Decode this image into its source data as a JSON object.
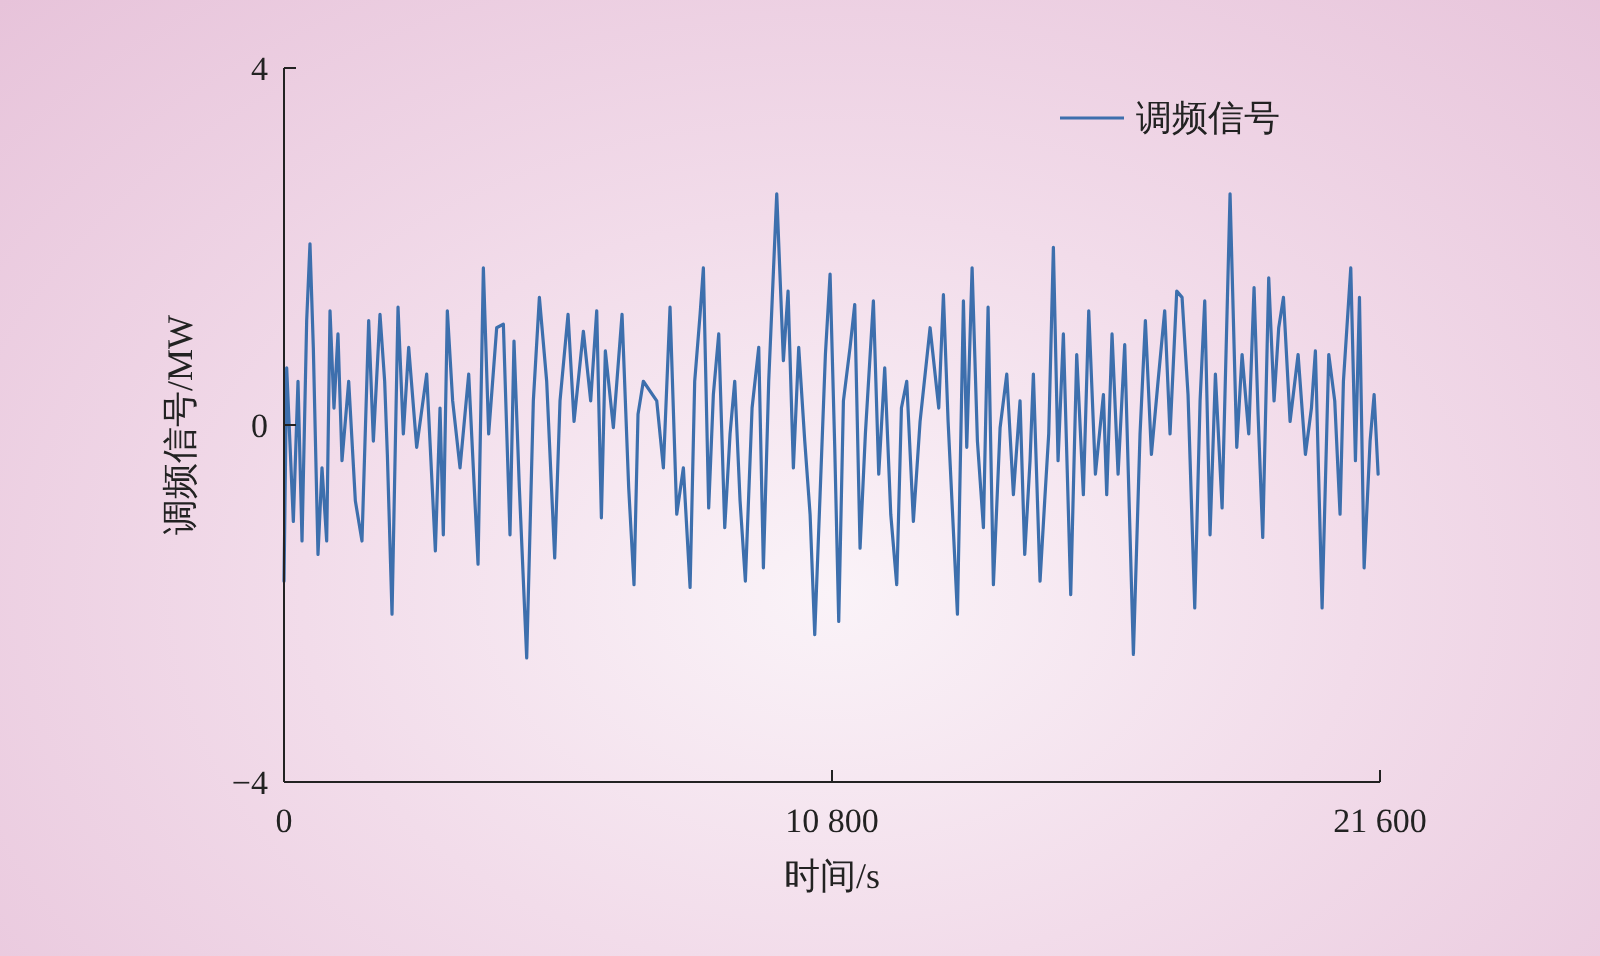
{
  "chart_data": {
    "type": "line",
    "xlabel": "时间/s",
    "ylabel": "调频信号/MW",
    "xlim": [
      0,
      21600
    ],
    "xticks": [
      0,
      {
        "value": 10800,
        "label": "10 800"
      },
      {
        "value": 21600,
        "label": "21 600"
      }
    ],
    "ylim": [
      -4,
      4
    ],
    "yticks": [
      {
        "value": -4,
        "label": "−4"
      },
      0,
      4
    ],
    "grid": false,
    "legend": "top right",
    "x": [
      0,
      53,
      184,
      276,
      355,
      447,
      512,
      578,
      670,
      749,
      841,
      907,
      985,
      1064,
      1143,
      1275,
      1406,
      1537,
      1669,
      1761,
      1892,
      1984,
      2037,
      2129,
      2247,
      2352,
      2457,
      2615,
      2812,
      2983,
      3075,
      3140,
      3219,
      3324,
      3469,
      3640,
      3824,
      3929,
      4034,
      4192,
      4323,
      4454,
      4533,
      4638,
      4783,
      4914,
      5033,
      5177,
      5335,
      5440,
      5598,
      5716,
      5900,
      6044,
      6163,
      6255,
      6333,
      6491,
      6662,
      6793,
      6898,
      6977,
      7082,
      7346,
      7477,
      7608,
      7740,
      7871,
      8003,
      8094,
      8200,
      8265,
      8370,
      8462,
      8568,
      8686,
      8791,
      8883,
      8988,
      9093,
      9225,
      9356,
      9448,
      9553,
      9711,
      9842,
      9934,
      10039,
      10144,
      10263,
      10368,
      10460,
      10565,
      10670,
      10762,
      10854,
      10933,
      11025,
      11156,
      11248,
      11353,
      11458,
      11616,
      11721,
      11839,
      11958,
      12076,
      12168,
      12273,
      12404,
      12536,
      12733,
      12904,
      12996,
      13088,
      13272,
      13390,
      13456,
      13561,
      13666,
      13784,
      13876,
      13981,
      14113,
      14244,
      14375,
      14506,
      14598,
      14703,
      14769,
      14900,
      14992,
      15071,
      15163,
      15255,
      15360,
      15505,
      15623,
      15754,
      15860,
      15991,
      16149,
      16214,
      16319,
      16438,
      16569,
      16740,
      16871,
      16976,
      17095,
      17226,
      17357,
      17462,
      17594,
      17699,
      17817,
      17949,
      18054,
      18146,
      18251,
      18356,
      18488,
      18645,
      18777,
      18882,
      19013,
      19118,
      19197,
      19289,
      19407,
      19512,
      19604,
      19697,
      19828,
      19986,
      20130,
      20249,
      20327,
      20459,
      20590,
      20708,
      20813,
      20879,
      21024,
      21116,
      21195,
      21287,
      21405,
      21484,
      21563
    ],
    "series": [
      {
        "name": "调频信号",
        "color": "#3d6fad",
        "values": [
          -1.75,
          0.64,
          -1.08,
          0.49,
          -1.3,
          1.17,
          2.03,
          0.87,
          -1.45,
          -0.48,
          -1.3,
          1.28,
          0.19,
          1.02,
          -0.4,
          0.49,
          -0.85,
          -1.3,
          1.17,
          -0.18,
          1.24,
          0.49,
          -0.33,
          -2.12,
          1.32,
          -0.1,
          0.87,
          -0.25,
          0.57,
          -1.41,
          0.19,
          -1.23,
          1.28,
          0.27,
          -0.48,
          0.57,
          -1.56,
          1.76,
          -0.1,
          1.09,
          1.13,
          -1.23,
          0.94,
          -0.7,
          -2.61,
          0.27,
          1.43,
          0.49,
          -1.49,
          0.27,
          1.24,
          0.04,
          1.05,
          0.27,
          1.28,
          -1.04,
          0.83,
          -0.03,
          1.24,
          -0.7,
          -1.79,
          0.12,
          0.49,
          0.27,
          -0.48,
          1.32,
          -1.0,
          -0.48,
          -1.82,
          0.49,
          1.24,
          1.76,
          -0.93,
          0.34,
          1.02,
          -1.15,
          -0.1,
          0.49,
          -0.85,
          -1.75,
          0.19,
          0.87,
          -1.6,
          0.49,
          2.59,
          0.72,
          1.5,
          -0.48,
          0.87,
          -0.18,
          -1.0,
          -2.35,
          -0.78,
          0.79,
          1.69,
          -0.25,
          -2.2,
          0.27,
          0.87,
          1.35,
          -1.38,
          -0.1,
          1.39,
          -0.55,
          0.64,
          -1.0,
          -1.79,
          0.19,
          0.49,
          -1.08,
          0.04,
          1.09,
          0.19,
          1.46,
          0.04,
          -2.12,
          1.39,
          -0.25,
          1.76,
          -0.18,
          -1.15,
          1.32,
          -1.79,
          -0.03,
          0.57,
          -0.78,
          0.27,
          -1.45,
          -0.4,
          0.57,
          -1.75,
          -0.85,
          -0.1,
          1.99,
          -0.4,
          1.02,
          -1.9,
          0.79,
          -0.78,
          1.28,
          -0.55,
          0.34,
          -0.78,
          1.02,
          -0.55,
          0.9,
          -2.57,
          -0.1,
          1.17,
          -0.33,
          0.49,
          1.28,
          -0.1,
          1.5,
          1.43,
          0.34,
          -2.05,
          0.27,
          1.39,
          -1.23,
          0.57,
          -0.93,
          2.59,
          -0.25,
          0.79,
          -0.1,
          1.54,
          0.12,
          -1.26,
          1.65,
          0.27,
          1.09,
          1.43,
          0.04,
          0.79,
          -0.33,
          0.19,
          0.83,
          -2.05,
          0.79,
          0.27,
          -1.0,
          0.49,
          1.76,
          -0.4,
          1.43,
          -1.6,
          -0.18,
          0.34,
          -0.55
        ]
      }
    ]
  }
}
